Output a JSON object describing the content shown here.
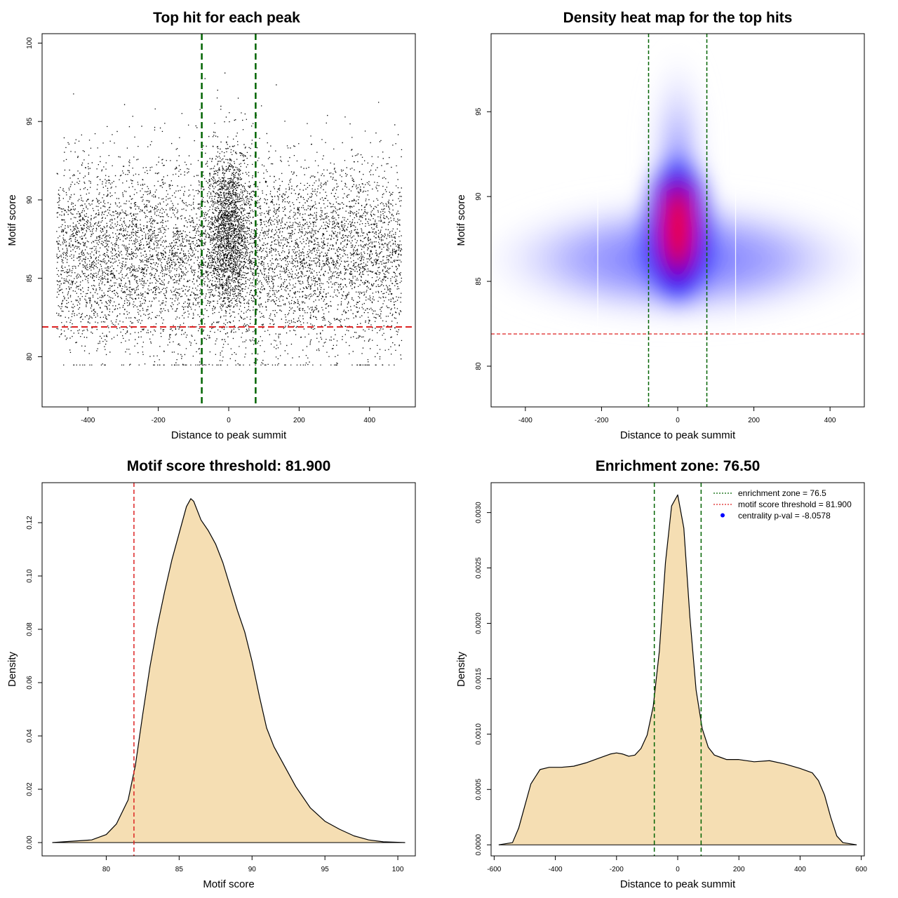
{
  "colors": {
    "threshold": "#dd2222",
    "zone": "#006400",
    "fill": "#f5deb3",
    "scatter": "#000000",
    "heat_low": "#ffffff",
    "heat_mid": "#0000ff",
    "heat_high": "#ff0000"
  },
  "chart_data": [
    {
      "id": "scatter",
      "type": "scatter",
      "title": "Top hit for each peak",
      "xlabel": "Distance to peak summit",
      "ylabel": "Motif score",
      "xlim": [
        -530,
        530
      ],
      "ylim": [
        76.8,
        100.6
      ],
      "xticks": [
        -400,
        -200,
        0,
        200,
        400
      ],
      "yticks": [
        80,
        85,
        90,
        95,
        100
      ],
      "threshold_y": 81.9,
      "zone_x": [
        -76.5,
        76.5
      ],
      "n_points_approx": 9000,
      "distribution": {
        "background": {
          "x_range": [
            -490,
            490
          ],
          "y_mean": 86.5,
          "y_sd": 3.0
        },
        "central": {
          "x_mean": 0,
          "x_sd": 28,
          "y_mean": 88.3,
          "y_sd": 2.6
        }
      }
    },
    {
      "id": "heatmap",
      "type": "heatmap",
      "title": "Density heat map for the top hits",
      "xlabel": "Distance to peak summit",
      "ylabel": "Motif score",
      "xlim": [
        -490,
        490
      ],
      "ylim": [
        77.6,
        99.6
      ],
      "xticks": [
        -400,
        -200,
        0,
        200,
        400
      ],
      "yticks": [
        80,
        85,
        90,
        95
      ],
      "threshold_y": 81.9,
      "zone_x": [
        -76.5,
        76.5
      ],
      "colorscale": [
        "white",
        "blue",
        "red"
      ]
    },
    {
      "id": "score-density",
      "type": "area",
      "title": "Motif score threshold: 81.900",
      "xlabel": "Motif score",
      "ylabel": "Density",
      "xlim": [
        75.6,
        101.2
      ],
      "ylim": [
        -0.005,
        0.135
      ],
      "xticks": [
        80,
        85,
        90,
        95,
        100
      ],
      "yticks": [
        0.0,
        0.02,
        0.04,
        0.06,
        0.08,
        0.1,
        0.12
      ],
      "ytick_labels": [
        "0.00",
        "0.02",
        "0.04",
        "0.06",
        "0.08",
        "0.10",
        "0.12"
      ],
      "threshold_x": 81.9,
      "x": [
        76.3,
        79,
        80,
        80.7,
        81.5,
        82,
        82.5,
        83,
        83.5,
        84,
        84.5,
        85,
        85.5,
        85.8,
        86,
        86.5,
        87,
        87.5,
        88,
        88.5,
        89,
        89.5,
        90,
        90.5,
        91,
        91.5,
        92,
        92.5,
        93,
        93.5,
        94,
        95,
        96,
        97,
        98,
        99,
        100.5
      ],
      "y": [
        0,
        0.001,
        0.003,
        0.007,
        0.016,
        0.029,
        0.048,
        0.066,
        0.081,
        0.094,
        0.106,
        0.116,
        0.126,
        0.129,
        0.128,
        0.121,
        0.117,
        0.112,
        0.105,
        0.096,
        0.087,
        0.079,
        0.068,
        0.055,
        0.043,
        0.036,
        0.031,
        0.026,
        0.021,
        0.017,
        0.013,
        0.008,
        0.005,
        0.0025,
        0.001,
        0.0003,
        0
      ]
    },
    {
      "id": "distance-density",
      "type": "area",
      "title": "Enrichment zone: 76.50",
      "xlabel": "Distance to peak summit",
      "ylabel": "Density",
      "xlim": [
        -610,
        610
      ],
      "ylim": [
        -0.0001,
        0.00327
      ],
      "xticks": [
        -600,
        -400,
        -200,
        0,
        200,
        400,
        600
      ],
      "yticks": [
        0,
        0.0005,
        0.001,
        0.0015,
        0.002,
        0.0025,
        0.003
      ],
      "ytick_labels": [
        "0.0000",
        "0.0005",
        "0.0010",
        "0.0015",
        "0.0020",
        "0.0025",
        "0.0030"
      ],
      "zone_x": [
        -76.5,
        76.5
      ],
      "x": [
        -585,
        -540,
        -520,
        -500,
        -480,
        -450,
        -420,
        -380,
        -340,
        -300,
        -260,
        -220,
        -200,
        -180,
        -160,
        -140,
        -120,
        -100,
        -80,
        -60,
        -40,
        -20,
        0,
        20,
        40,
        60,
        80,
        100,
        120,
        140,
        160,
        200,
        250,
        300,
        350,
        400,
        440,
        460,
        480,
        500,
        520,
        540,
        585
      ],
      "y": [
        0,
        2e-05,
        0.00015,
        0.00035,
        0.00055,
        0.00068,
        0.0007,
        0.0007,
        0.00071,
        0.00074,
        0.00078,
        0.00082,
        0.00083,
        0.00082,
        0.0008,
        0.00081,
        0.00087,
        0.00099,
        0.00125,
        0.00175,
        0.00255,
        0.00306,
        0.00316,
        0.00286,
        0.00205,
        0.0014,
        0.00105,
        0.00088,
        0.00081,
        0.00079,
        0.00077,
        0.00077,
        0.00075,
        0.00076,
        0.00073,
        0.00069,
        0.00065,
        0.00058,
        0.00045,
        0.00025,
        8e-05,
        2e-05,
        0
      ],
      "legend": {
        "position": "top-right",
        "items": [
          {
            "label": "enrichment zone = 76.5",
            "kind": "dotted-line",
            "color": "#006400"
          },
          {
            "label": "motif score threshold = 81.900",
            "kind": "dotted-line",
            "color": "#dd2222"
          },
          {
            "label": "centrality p-val = -8.0578",
            "kind": "point",
            "color": "#0000ff"
          }
        ]
      }
    }
  ]
}
